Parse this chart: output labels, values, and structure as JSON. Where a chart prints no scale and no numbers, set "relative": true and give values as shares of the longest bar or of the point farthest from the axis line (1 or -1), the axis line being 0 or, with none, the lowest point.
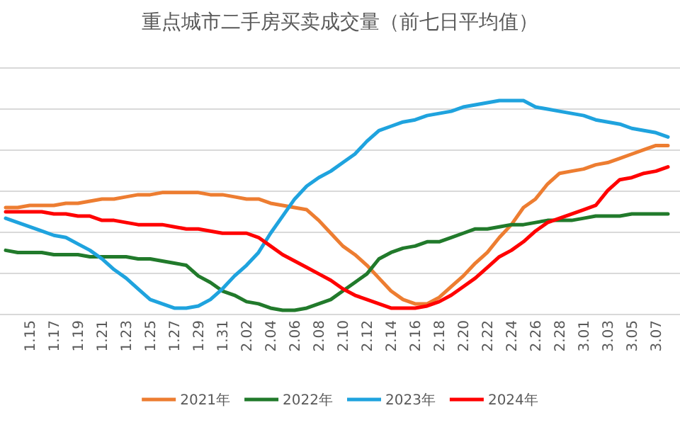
{
  "chart_data": {
    "type": "line",
    "title": "重点城市二手房买卖成交量（前七日平均值）",
    "relative": true,
    "grid": "y",
    "legend": "bottom",
    "marker": "none",
    "categories": [
      null,
      null,
      "1.15",
      null,
      "1.17",
      null,
      "1.19",
      null,
      "1.21",
      null,
      "1.23",
      null,
      "1.25",
      null,
      "1.27",
      null,
      "1.29",
      null,
      "1.31",
      null,
      "2.02",
      null,
      "2.04",
      null,
      "2.06",
      null,
      "2.08",
      null,
      "2.10",
      null,
      "2.12",
      null,
      "2.14",
      null,
      "2.16",
      null,
      "2.18",
      null,
      "2.20",
      null,
      "2.22",
      null,
      "2.24",
      null,
      "2.26",
      null,
      "2.28",
      null,
      "3.01",
      null,
      "3.03",
      null,
      "3.05",
      null,
      "3.07",
      null
    ],
    "series": [
      {
        "name": "2021年",
        "color": "#ed7d31",
        "values": [
          0.5,
          0.5,
          0.51,
          0.51,
          0.51,
          0.52,
          0.52,
          0.53,
          0.54,
          0.54,
          0.55,
          0.56,
          0.56,
          0.57,
          0.57,
          0.57,
          0.57,
          0.56,
          0.56,
          0.55,
          0.54,
          0.54,
          0.52,
          0.51,
          0.5,
          0.49,
          0.44,
          0.38,
          0.32,
          0.28,
          0.23,
          0.17,
          0.11,
          0.07,
          0.05,
          0.05,
          0.08,
          0.13,
          0.18,
          0.24,
          0.29,
          0.36,
          0.42,
          0.5,
          0.54,
          0.61,
          0.66,
          0.67,
          0.68,
          0.7,
          0.71,
          0.73,
          0.75,
          0.77,
          0.79,
          0.79
        ]
      },
      {
        "name": "2022年",
        "color": "#217a2b",
        "values": [
          0.3,
          0.29,
          0.29,
          0.29,
          0.28,
          0.28,
          0.28,
          0.27,
          0.27,
          0.27,
          0.27,
          0.26,
          0.26,
          0.25,
          0.24,
          0.23,
          0.18,
          0.15,
          0.11,
          0.09,
          0.06,
          0.05,
          0.03,
          0.02,
          0.02,
          0.03,
          0.05,
          0.07,
          0.11,
          0.15,
          0.19,
          0.26,
          0.29,
          0.31,
          0.32,
          0.34,
          0.34,
          0.36,
          0.38,
          0.4,
          0.4,
          0.41,
          0.42,
          0.42,
          0.43,
          0.44,
          0.44,
          0.44,
          0.45,
          0.46,
          0.46,
          0.46,
          0.47,
          0.47,
          0.47,
          0.47
        ]
      },
      {
        "name": "2023年",
        "color": "#1fa3de",
        "values": [
          0.45,
          0.43,
          0.41,
          0.39,
          0.37,
          0.36,
          0.33,
          0.3,
          0.26,
          0.21,
          0.17,
          0.12,
          0.07,
          0.05,
          0.03,
          0.03,
          0.04,
          0.07,
          0.12,
          0.18,
          0.23,
          0.29,
          0.38,
          0.46,
          0.54,
          0.6,
          0.64,
          0.67,
          0.71,
          0.75,
          0.81,
          0.86,
          0.88,
          0.9,
          0.91,
          0.93,
          0.94,
          0.95,
          0.97,
          0.98,
          0.99,
          1.0,
          1.0,
          1.0,
          0.97,
          0.96,
          0.95,
          0.94,
          0.93,
          0.91,
          0.9,
          0.89,
          0.87,
          0.86,
          0.85,
          0.83
        ]
      },
      {
        "name": "2024年",
        "color": "#ff0000",
        "values": [
          0.48,
          0.48,
          0.48,
          0.48,
          0.47,
          0.47,
          0.46,
          0.46,
          0.44,
          0.44,
          0.43,
          0.42,
          0.42,
          0.42,
          0.41,
          0.4,
          0.4,
          0.39,
          0.38,
          0.38,
          0.38,
          0.36,
          0.32,
          0.28,
          0.25,
          0.22,
          0.19,
          0.16,
          0.12,
          0.09,
          0.07,
          0.05,
          0.03,
          0.03,
          0.03,
          0.04,
          0.06,
          0.09,
          0.13,
          0.17,
          0.22,
          0.27,
          0.3,
          0.34,
          0.39,
          0.43,
          0.45,
          0.47,
          0.49,
          0.51,
          0.58,
          0.63,
          0.64,
          0.66,
          0.67,
          0.69
        ]
      }
    ]
  }
}
